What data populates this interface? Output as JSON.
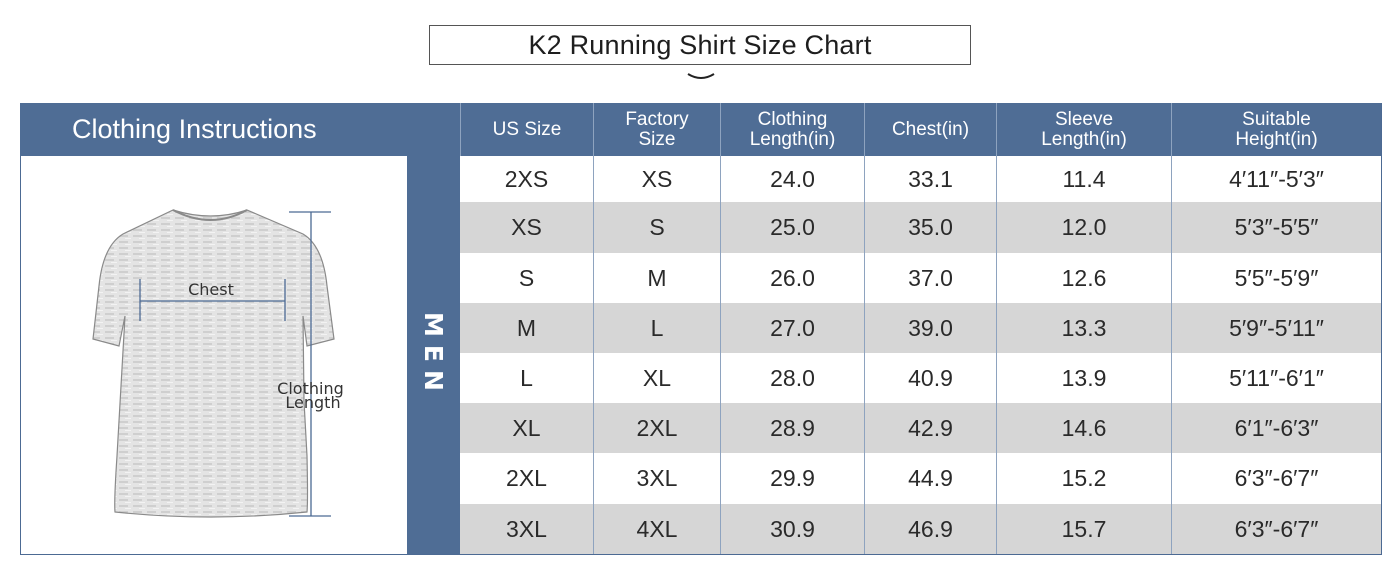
{
  "title": "K2 Running Shirt Size Chart",
  "instructions_label": "Clothing Instructions",
  "diagram": {
    "chest_label": "Chest",
    "length_label": "Clothing\nLength"
  },
  "group_label": "MEN",
  "columns": [
    "US Size",
    "Factory\nSize",
    "Clothing\nLength(in)",
    "Chest(in)",
    "Sleeve\nLength(in)",
    "Suitable\nHeight(in)"
  ],
  "rows": [
    [
      "2XS",
      "XS",
      "24.0",
      "33.1",
      "11.4",
      "4′11″-5′3″"
    ],
    [
      "XS",
      "S",
      "25.0",
      "35.0",
      "12.0",
      "5′3″-5′5″"
    ],
    [
      "S",
      "M",
      "26.0",
      "37.0",
      "12.6",
      "5′5″-5′9″"
    ],
    [
      "M",
      "L",
      "27.0",
      "39.0",
      "13.3",
      "5′9″-5′11″"
    ],
    [
      "L",
      "XL",
      "28.0",
      "40.9",
      "13.9",
      "5′11″-6′1″"
    ],
    [
      "XL",
      "2XL",
      "28.9",
      "42.9",
      "14.6",
      "6′1″-6′3″"
    ],
    [
      "2XL",
      "3XL",
      "29.9",
      "44.9",
      "15.2",
      "6′3″-6′7″"
    ],
    [
      "3XL",
      "4XL",
      "30.9",
      "46.9",
      "15.7",
      "6′3″-6′7″"
    ]
  ],
  "colors": {
    "header_bg": "#4f6d95",
    "row_shade": "#d6d6d6",
    "measure_line": "#4c6a93"
  }
}
